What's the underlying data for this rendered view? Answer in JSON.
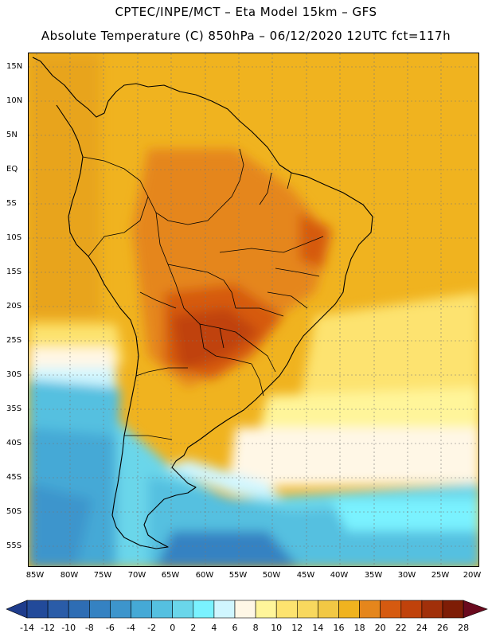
{
  "header": {
    "line1": "CPTEC/INPE/MCT –  Eta Model 15km – GFS",
    "line2": "Absolute Temperature (C) 850hPa – 06/12/2020 12UTC fct=117h"
  },
  "axes": {
    "lat_labels": [
      "15N",
      "10N",
      "5N",
      "EQ",
      "5S",
      "10S",
      "15S",
      "20S",
      "25S",
      "30S",
      "35S",
      "40S",
      "45S",
      "50S",
      "55S"
    ],
    "lon_labels": [
      "85W",
      "80W",
      "75W",
      "70W",
      "65W",
      "60W",
      "55W",
      "50W",
      "45W",
      "40W",
      "35W",
      "30W",
      "25W",
      "20W"
    ]
  },
  "legend": {
    "labels": [
      "-14",
      "-12",
      "-10",
      "-8",
      "-6",
      "-4",
      "-2",
      "0",
      "2",
      "4",
      "6",
      "8",
      "10",
      "12",
      "14",
      "16",
      "18",
      "20",
      "22",
      "24",
      "26",
      "28"
    ],
    "colors": [
      "#1e3c8c",
      "#224a9a",
      "#2a5ca8",
      "#2e6db4",
      "#3582c2",
      "#3d95cc",
      "#45a9d6",
      "#55c0e0",
      "#6ad6ea",
      "#7af2ff",
      "#d0f6ff",
      "#fff7e6",
      "#fff59a",
      "#fde36f",
      "#f8d85e",
      "#f2c844",
      "#f0b31f",
      "#e5861c",
      "#d65a10",
      "#c0420b",
      "#a1300a",
      "#7e1d06",
      "#6a0a1e"
    ]
  }
}
